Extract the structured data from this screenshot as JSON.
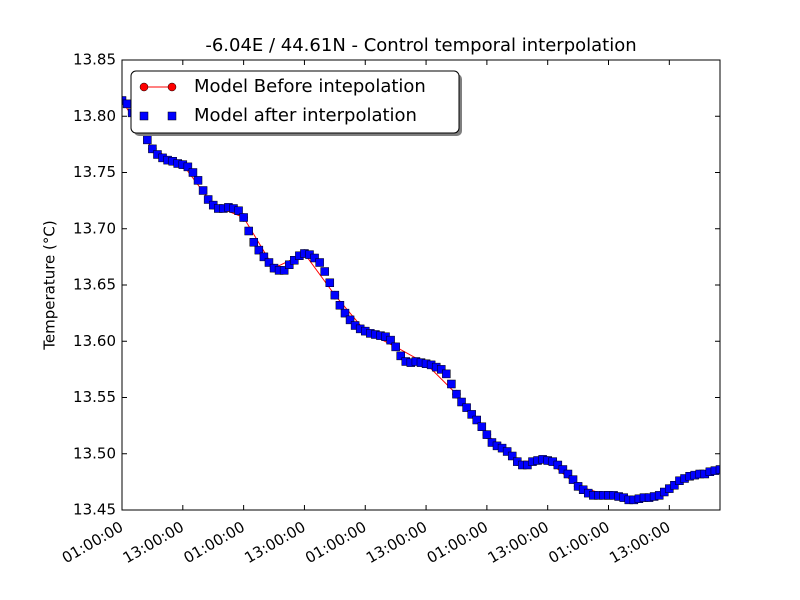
{
  "chart_data": {
    "type": "line",
    "title": "-6.04E / 44.61N - Control temporal interpolation",
    "y_label": "Temperature (°C)",
    "legend": "upper left",
    "xlim": [
      0,
      118
    ],
    "ylim": [
      13.45,
      13.85
    ],
    "xticks": [
      {
        "value": 0,
        "label": "01:00:00"
      },
      {
        "value": 12,
        "label": "13:00:00"
      },
      {
        "value": 24,
        "label": "01:00:00"
      },
      {
        "value": 36,
        "label": "13:00:00"
      },
      {
        "value": 48,
        "label": "01:00:00"
      },
      {
        "value": 60,
        "label": "13:00:00"
      },
      {
        "value": 72,
        "label": "01:00:00"
      },
      {
        "value": 84,
        "label": "13:00:00"
      },
      {
        "value": 96,
        "label": "01:00:00"
      },
      {
        "value": 108,
        "label": "13:00:00"
      }
    ],
    "yticks": [
      13.45,
      {
        "value": 13.5,
        "label": "13.50"
      },
      13.55,
      {
        "value": 13.6,
        "label": "13.60"
      },
      13.65,
      {
        "value": 13.7,
        "label": "13.70"
      },
      13.75,
      {
        "value": 13.8,
        "label": "13.80"
      },
      13.85
    ],
    "series": [
      {
        "name": "Model Before intepolation",
        "color": "#ff0000",
        "marker": "circle",
        "line": true,
        "x": [
          0,
          6,
          12,
          18,
          24,
          30,
          36,
          42,
          48,
          54,
          60,
          66,
          72,
          78,
          84,
          90,
          96,
          102,
          108,
          114
        ],
        "values": [
          13.814,
          13.771,
          13.757,
          13.721,
          13.71,
          13.665,
          13.678,
          13.641,
          13.609,
          13.595,
          13.58,
          13.553,
          13.517,
          13.493,
          13.494,
          13.471,
          13.463,
          13.46,
          13.469,
          13.482
        ]
      },
      {
        "name": "Model after interpolation",
        "color": "#0000ff",
        "marker": "square",
        "line": false,
        "x": [
          0,
          1,
          2,
          3,
          4,
          5,
          6,
          7,
          8,
          9,
          10,
          11,
          12,
          13,
          14,
          15,
          16,
          17,
          18,
          19,
          20,
          21,
          22,
          23,
          24,
          25,
          26,
          27,
          28,
          29,
          30,
          31,
          32,
          33,
          34,
          35,
          36,
          37,
          38,
          39,
          40,
          41,
          42,
          43,
          44,
          45,
          46,
          47,
          48,
          49,
          50,
          51,
          52,
          53,
          54,
          55,
          56,
          57,
          58,
          59,
          60,
          61,
          62,
          63,
          64,
          65,
          66,
          67,
          68,
          69,
          70,
          71,
          72,
          73,
          74,
          75,
          76,
          77,
          78,
          79,
          80,
          81,
          82,
          83,
          84,
          85,
          86,
          87,
          88,
          89,
          90,
          91,
          92,
          93,
          94,
          95,
          96,
          97,
          98,
          99,
          100,
          101,
          102,
          103,
          104,
          105,
          106,
          107,
          108,
          109,
          110,
          111,
          112,
          113,
          114,
          115,
          116,
          117,
          118
        ],
        "values": [
          13.814,
          13.811,
          13.803,
          13.795,
          13.788,
          13.779,
          13.771,
          13.766,
          13.763,
          13.761,
          13.76,
          13.758,
          13.757,
          13.755,
          13.75,
          13.743,
          13.734,
          13.726,
          13.721,
          13.718,
          13.718,
          13.719,
          13.718,
          13.716,
          13.71,
          13.698,
          13.688,
          13.681,
          13.675,
          13.67,
          13.665,
          13.663,
          13.663,
          13.668,
          13.672,
          13.676,
          13.678,
          13.677,
          13.674,
          13.67,
          13.662,
          13.652,
          13.641,
          13.632,
          13.625,
          13.619,
          13.614,
          13.611,
          13.609,
          13.607,
          13.606,
          13.605,
          13.604,
          13.601,
          13.595,
          13.587,
          13.582,
          13.581,
          13.582,
          13.581,
          13.58,
          13.579,
          13.577,
          13.575,
          13.571,
          13.562,
          13.553,
          13.546,
          13.541,
          13.535,
          13.53,
          13.524,
          13.517,
          13.51,
          13.507,
          13.505,
          13.502,
          13.498,
          13.493,
          13.49,
          13.49,
          13.493,
          13.494,
          13.495,
          13.494,
          13.493,
          13.49,
          13.486,
          13.482,
          13.477,
          13.471,
          13.468,
          13.465,
          13.463,
          13.463,
          13.463,
          13.463,
          13.463,
          13.462,
          13.461,
          13.459,
          13.459,
          13.46,
          13.461,
          13.461,
          13.462,
          13.463,
          13.466,
          13.469,
          13.472,
          13.476,
          13.478,
          13.48,
          13.481,
          13.482,
          13.482,
          13.484,
          13.485,
          13.486
        ]
      }
    ]
  }
}
